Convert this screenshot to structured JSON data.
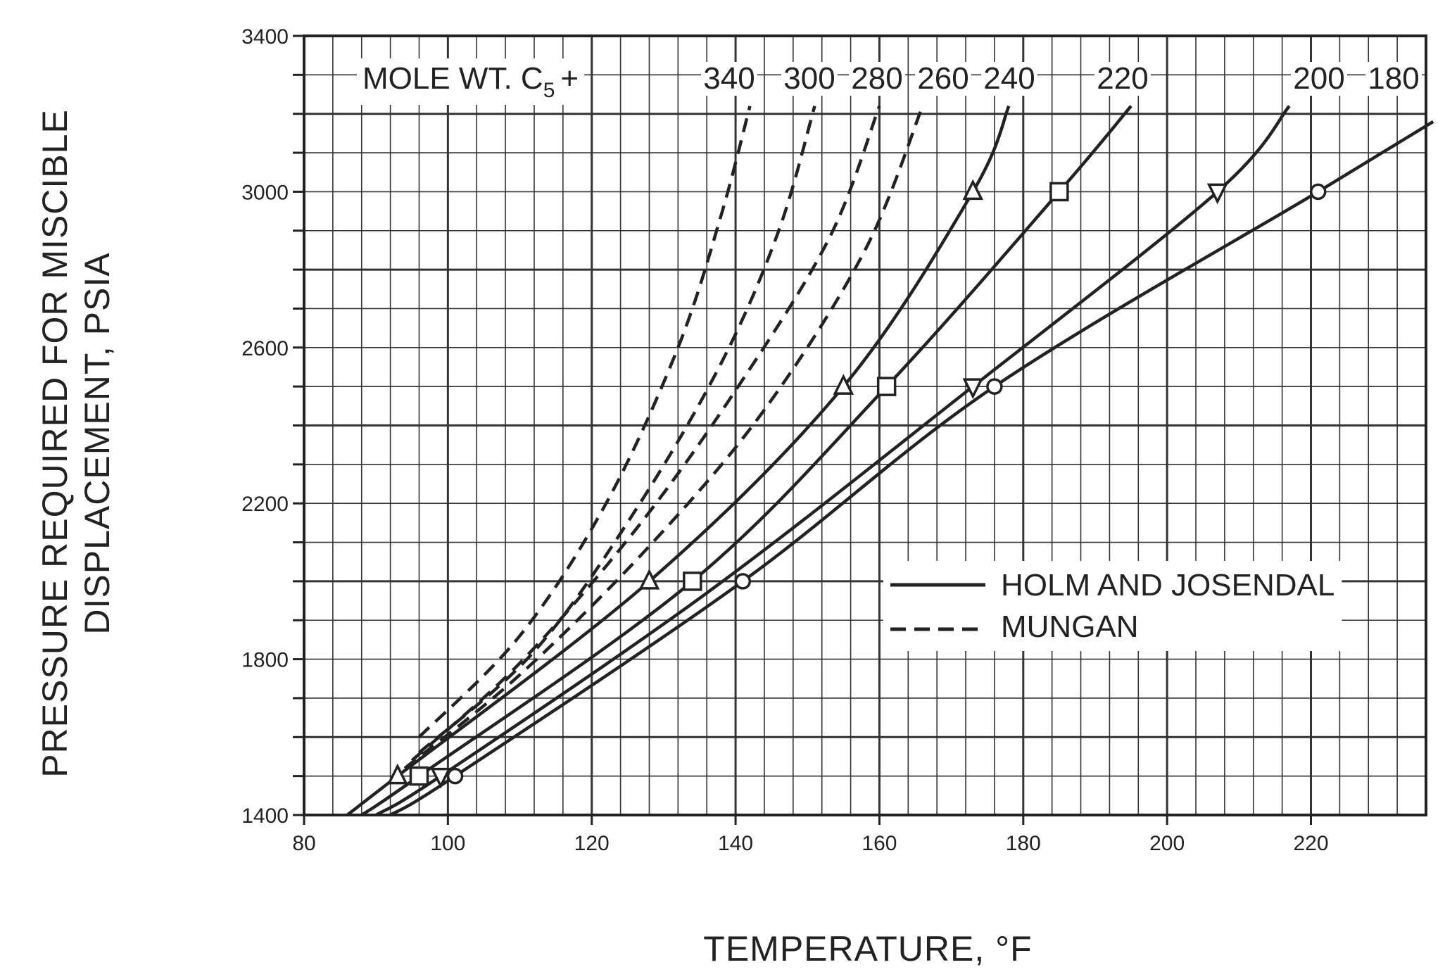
{
  "chart_data": {
    "type": "line",
    "xlabel": "TEMPERATURE, °F",
    "ylabel_line1": "PRESSURE REQUIRED FOR MISCIBLE",
    "ylabel_line2": "DISPLACEMENT, PSIA",
    "xlim": [
      80,
      236
    ],
    "ylim": [
      1400,
      3400
    ],
    "x_ticks": [
      "80",
      "100",
      "120",
      "140",
      "160",
      "180",
      "200",
      "220"
    ],
    "y_ticks": [
      "1400",
      "1800",
      "2200",
      "2600",
      "3000",
      "3400"
    ],
    "grid": true,
    "group_label": "MOLE WT. C",
    "group_label_sub": "5",
    "group_label_suffix": "+",
    "legend": {
      "placement": "center-right",
      "solid_label": "HOLM AND JOSENDAL",
      "dashed_label": "MUNGAN"
    },
    "series": [
      {
        "name": "340",
        "style": "dashed",
        "x": [
          96,
          110,
          122,
          132,
          138,
          142
        ],
        "y": [
          1600,
          1860,
          2200,
          2600,
          2940,
          3220
        ]
      },
      {
        "name": "300",
        "style": "dashed",
        "x": [
          96,
          112,
          126,
          138,
          146,
          151
        ],
        "y": [
          1560,
          1820,
          2180,
          2560,
          2900,
          3220
        ]
      },
      {
        "name": "280",
        "style": "dashed",
        "x": [
          95,
          110,
          126,
          140,
          153,
          160
        ],
        "y": [
          1540,
          1790,
          2130,
          2490,
          2880,
          3220
        ]
      },
      {
        "name": "260",
        "style": "dashed",
        "x": [
          94,
          110,
          128,
          144,
          158,
          166
        ],
        "y": [
          1520,
          1760,
          2090,
          2440,
          2850,
          3220
        ]
      },
      {
        "name": "240",
        "style": "solid",
        "marker": "triangle-up",
        "x": [
          86,
          93,
          128,
          155,
          173,
          178
        ],
        "y": [
          1400,
          1500,
          2000,
          2500,
          3000,
          3220
        ]
      },
      {
        "name": "220",
        "style": "solid",
        "marker": "square",
        "x": [
          88,
          96,
          134,
          161,
          185,
          195
        ],
        "y": [
          1400,
          1500,
          2000,
          2500,
          3000,
          3220
        ]
      },
      {
        "name": "200",
        "style": "solid",
        "marker": "triangle-down",
        "x": [
          90,
          99,
          136,
          173,
          207,
          217
        ],
        "y": [
          1400,
          1500,
          1970,
          2500,
          3000,
          3220
        ]
      },
      {
        "name": "180",
        "style": "solid",
        "marker": "circle",
        "x": [
          92,
          101,
          141,
          176,
          221,
          237
        ],
        "y": [
          1400,
          1500,
          2000,
          2500,
          3000,
          3180
        ]
      }
    ],
    "markers": [
      {
        "series": "240",
        "shape": "triangle-up",
        "x": 93,
        "y": 1500
      },
      {
        "series": "240",
        "shape": "triangle-up",
        "x": 128,
        "y": 2000
      },
      {
        "series": "240",
        "shape": "triangle-up",
        "x": 155,
        "y": 2500
      },
      {
        "series": "240",
        "shape": "triangle-up",
        "x": 173,
        "y": 3000
      },
      {
        "series": "220",
        "shape": "square",
        "x": 96,
        "y": 1500
      },
      {
        "series": "220",
        "shape": "square",
        "x": 134,
        "y": 2000
      },
      {
        "series": "220",
        "shape": "square",
        "x": 161,
        "y": 2500
      },
      {
        "series": "220",
        "shape": "square",
        "x": 185,
        "y": 3000
      },
      {
        "series": "200",
        "shape": "triangle-down",
        "x": 99,
        "y": 1500
      },
      {
        "series": "200",
        "shape": "triangle-down",
        "x": 173,
        "y": 2500
      },
      {
        "series": "200",
        "shape": "triangle-down",
        "x": 207,
        "y": 3000
      },
      {
        "series": "180",
        "shape": "circle",
        "x": 101,
        "y": 1500
      },
      {
        "series": "180",
        "shape": "circle",
        "x": 141,
        "y": 2000
      },
      {
        "series": "180",
        "shape": "circle",
        "x": 176,
        "y": 2500
      },
      {
        "series": "180",
        "shape": "circle",
        "x": 221,
        "y": 3000
      }
    ]
  }
}
